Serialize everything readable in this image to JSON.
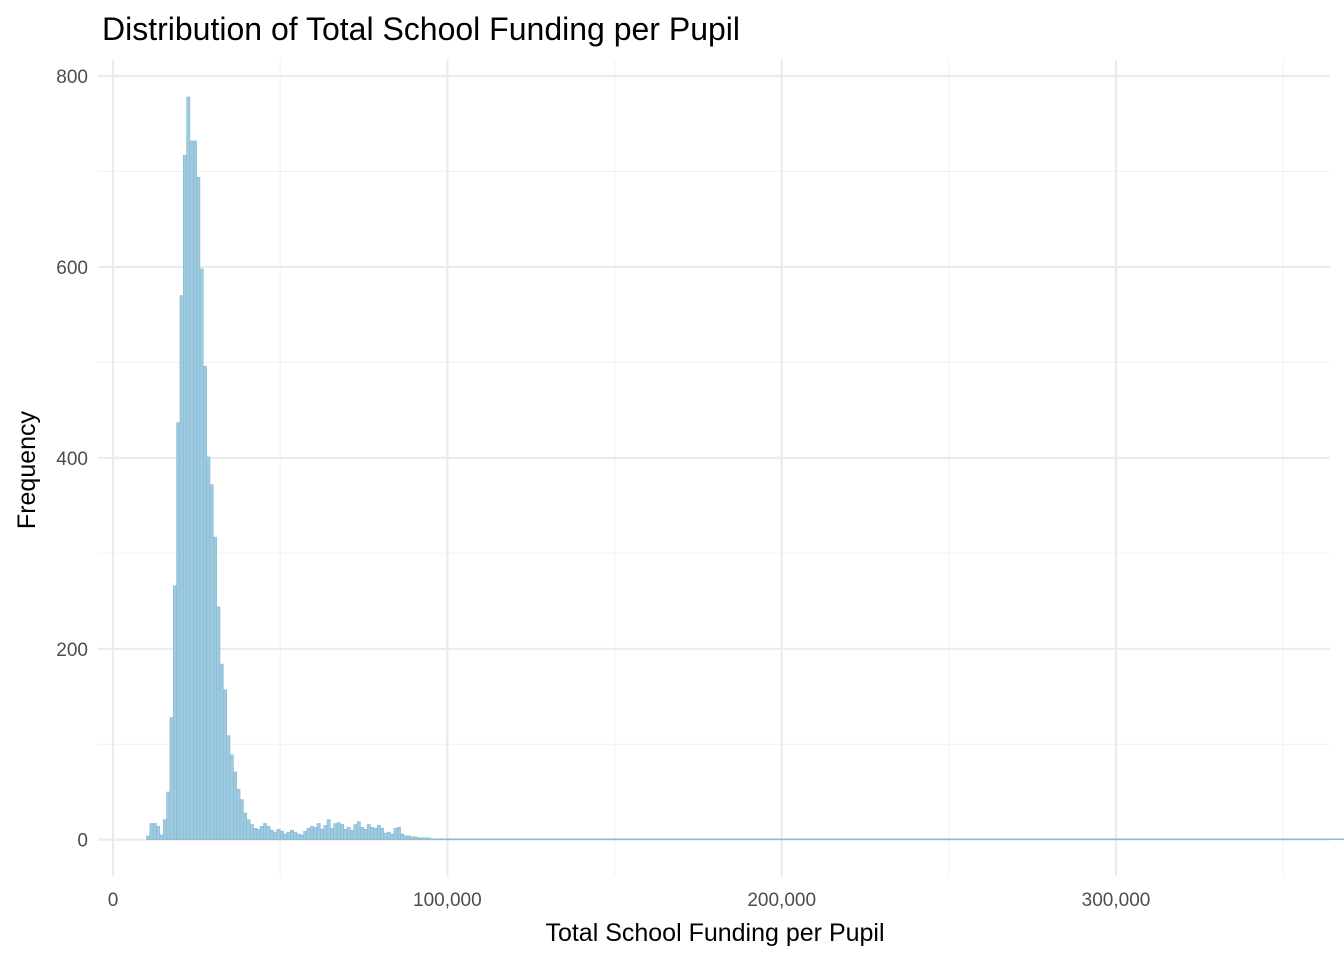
{
  "chart_data": {
    "type": "bar",
    "subtype": "histogram",
    "title": "Distribution of Total School Funding per Pupil",
    "xlabel": "Total School Funding per Pupil",
    "ylabel": "Frequency",
    "xlim": [
      -4500,
      364000
    ],
    "ylim": [
      -38,
      800
    ],
    "x_ticks": [
      0,
      100000,
      200000,
      300000
    ],
    "x_tick_labels": [
      "0",
      "100,000",
      "200,000",
      "300,000"
    ],
    "x_minor_ticks": [
      50000,
      150000,
      250000,
      350000
    ],
    "y_ticks": [
      0,
      200,
      400,
      600,
      800
    ],
    "y_tick_labels": [
      "0",
      "200",
      "400",
      "600",
      "800"
    ],
    "y_minor_ticks": [
      100,
      300,
      500,
      700
    ],
    "grid": true,
    "legend": "none",
    "bar_fill": "#9ecae1",
    "bar_stroke": "#7fb6cc",
    "bin_width": 1000,
    "bins_start": 10000,
    "counts": [
      4,
      17,
      17,
      14,
      5,
      21,
      50,
      128,
      266,
      437,
      570,
      717,
      778,
      732,
      732,
      694,
      598,
      496,
      401,
      372,
      317,
      244,
      184,
      157,
      109,
      89,
      71,
      53,
      42,
      28,
      21,
      16,
      12,
      11,
      14,
      17,
      14,
      10,
      8,
      11,
      9,
      6,
      8,
      10,
      8,
      6,
      5,
      9,
      12,
      14,
      13,
      17,
      11,
      15,
      21,
      12,
      17,
      18,
      16,
      11,
      13,
      10,
      16,
      19,
      13,
      11,
      16,
      13,
      12,
      15,
      12,
      7,
      8,
      6,
      12,
      13,
      6,
      4,
      4,
      3,
      3,
      2,
      2,
      2,
      2,
      1,
      1,
      1,
      1,
      1,
      1,
      1,
      1,
      1,
      1,
      1,
      1,
      1,
      1,
      1,
      1,
      1,
      1,
      1,
      1,
      1,
      1,
      1,
      1,
      1,
      1,
      1,
      1,
      1,
      1,
      1,
      1,
      1,
      1,
      1,
      1,
      1,
      1,
      1,
      1,
      1,
      1,
      1,
      1,
      1,
      1,
      1,
      1,
      1,
      1,
      1,
      1,
      1,
      1,
      1,
      1,
      1,
      1,
      1,
      1,
      1,
      1,
      1,
      1,
      1,
      1,
      1,
      1,
      1,
      1,
      1,
      1,
      1,
      1,
      1,
      1,
      1,
      1,
      1,
      1,
      1,
      1,
      1,
      1,
      1,
      1,
      1,
      1,
      1,
      1,
      1,
      1,
      1,
      1,
      1,
      1,
      1,
      1,
      1,
      1,
      1,
      1,
      1,
      1,
      1,
      1,
      1,
      1,
      1,
      1,
      1,
      1,
      1,
      1,
      1,
      1,
      1,
      1,
      1,
      1,
      1,
      1,
      1,
      1,
      1,
      1,
      1,
      1,
      1,
      1,
      1,
      1,
      1,
      1,
      1,
      1,
      1,
      1,
      1,
      1,
      1,
      1,
      1,
      1,
      1,
      1,
      1,
      1,
      1,
      1,
      1,
      1,
      1,
      1,
      1,
      1,
      1,
      1,
      1,
      1,
      1,
      1,
      1,
      1,
      1,
      1,
      1,
      1,
      1,
      1,
      1,
      1,
      1,
      1,
      1,
      1,
      1,
      1,
      1,
      1,
      1,
      1,
      1,
      1,
      1,
      1,
      1,
      1,
      1,
      1,
      1,
      1,
      1,
      1,
      1,
      1,
      1,
      1,
      1,
      1,
      1,
      1,
      1,
      1,
      1,
      1,
      1,
      1,
      1,
      1,
      1,
      1,
      1,
      1,
      1,
      1,
      1,
      1,
      1,
      1,
      1,
      1,
      1,
      1,
      1,
      1,
      1,
      1,
      1,
      1,
      1,
      1,
      1,
      1,
      1,
      1,
      1,
      1,
      1,
      1,
      1,
      1,
      1,
      1,
      1,
      1,
      1,
      1,
      1,
      1,
      1,
      1,
      1,
      1,
      1,
      1,
      1,
      1,
      1,
      1,
      1,
      1,
      1,
      1,
      1,
      1,
      1,
      1,
      1,
      1,
      1,
      1,
      1,
      1,
      1
    ]
  }
}
